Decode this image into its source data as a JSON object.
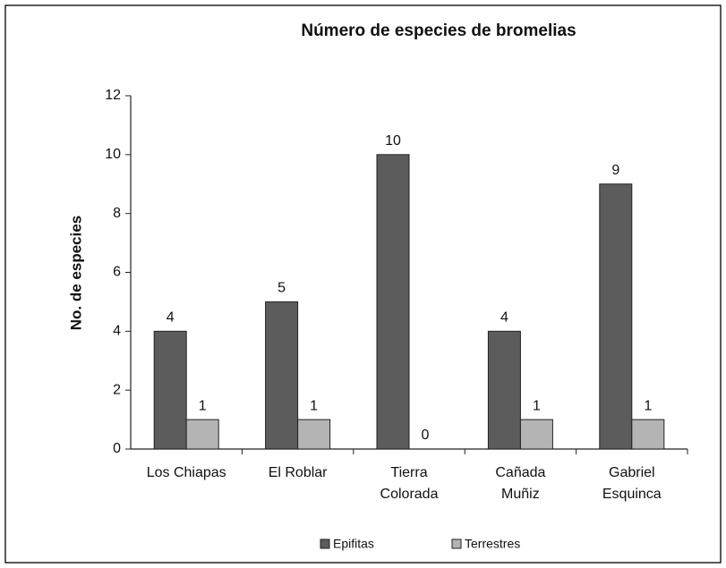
{
  "chart_data": {
    "type": "bar",
    "title": "Número de especies de bromelias",
    "y_label": "No. de especies",
    "categories": [
      [
        "Los Chiapas"
      ],
      [
        "El Roblar"
      ],
      [
        "Tierra",
        "Colorada"
      ],
      [
        "Cañada",
        "Muñiz"
      ],
      [
        "Gabriel",
        "Esquinca"
      ]
    ],
    "series": [
      {
        "name": "Epifitas",
        "color": "#5c5c5c",
        "values": [
          4,
          5,
          10,
          4,
          9
        ]
      },
      {
        "name": "Terrestres",
        "color": "#b4b4b4",
        "values": [
          1,
          1,
          0,
          1,
          1
        ]
      }
    ],
    "ylim": [
      0,
      12
    ],
    "yticks": [
      0,
      2,
      4,
      6,
      8,
      10,
      12
    ],
    "grid": false,
    "legend": "bottom"
  }
}
